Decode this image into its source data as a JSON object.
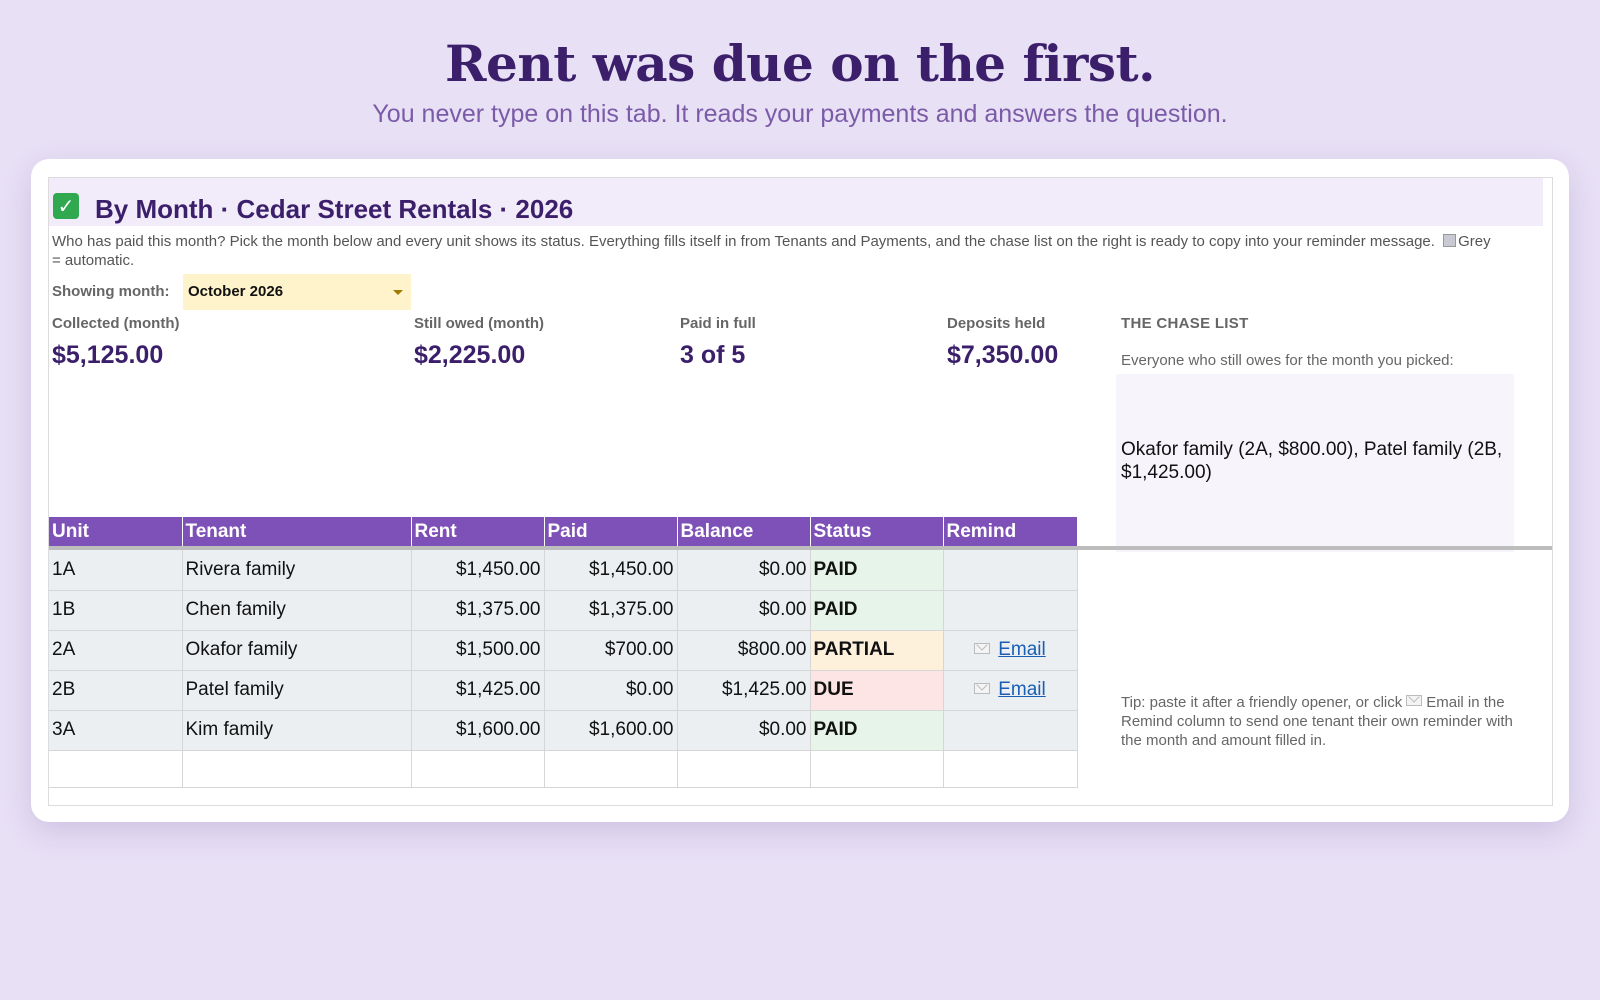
{
  "page": {
    "headline": "Rent was due on the first.",
    "subline": "You never type on this tab. It reads your payments and answers the question."
  },
  "sheet": {
    "icon": "check-mark-icon",
    "title": "By Month  ·  Cedar Street Rentals  ·  2026",
    "description": "Who has paid this month? Pick the month below and every unit shows its status. Everything fills itself in from Tenants and Payments, and the chase list on the right is ready to copy into your reminder message.",
    "grey_note": "Grey = automatic.",
    "month_label": "Showing month:",
    "month_value": "October 2026"
  },
  "kpis": [
    {
      "label": "Collected (month)",
      "value": "$5,125.00"
    },
    {
      "label": "Still owed (month)",
      "value": "$2,225.00"
    },
    {
      "label": "Paid in full",
      "value": "3 of 5"
    },
    {
      "label": "Deposits held",
      "value": "$7,350.00"
    }
  ],
  "chase": {
    "heading": "THE CHASE LIST",
    "subheading": "Everyone who still owes for the month you picked:",
    "text": "Okafor family (2A, $800.00), Patel family (2B, $1,425.00)",
    "tip_before": "Tip: paste it after a friendly opener, or click",
    "tip_after": "Email in the Remind column to send one tenant their own reminder with the month and amount filled in."
  },
  "table": {
    "headers": [
      "Unit",
      "Tenant",
      "Rent",
      "Paid",
      "Balance",
      "Status",
      "Remind"
    ],
    "rows": [
      {
        "unit": "1A",
        "tenant": "Rivera family",
        "rent": "$1,450.00",
        "paid": "$1,450.00",
        "balance": "$0.00",
        "status": "PAID",
        "remind": ""
      },
      {
        "unit": "1B",
        "tenant": "Chen family",
        "rent": "$1,375.00",
        "paid": "$1,375.00",
        "balance": "$0.00",
        "status": "PAID",
        "remind": ""
      },
      {
        "unit": "2A",
        "tenant": "Okafor family",
        "rent": "$1,500.00",
        "paid": "$700.00",
        "balance": "$800.00",
        "status": "PARTIAL",
        "remind": "Email"
      },
      {
        "unit": "2B",
        "tenant": "Patel family",
        "rent": "$1,425.00",
        "paid": "$0.00",
        "balance": "$1,425.00",
        "status": "DUE",
        "remind": "Email"
      },
      {
        "unit": "3A",
        "tenant": "Kim family",
        "rent": "$1,600.00",
        "paid": "$1,600.00",
        "balance": "$0.00",
        "status": "PAID",
        "remind": ""
      }
    ]
  },
  "colors": {
    "accent": "#7e51b8",
    "title": "#3b1f6b",
    "paid": "#1f7a3e",
    "partial": "#c0650b",
    "due": "#c62828"
  }
}
